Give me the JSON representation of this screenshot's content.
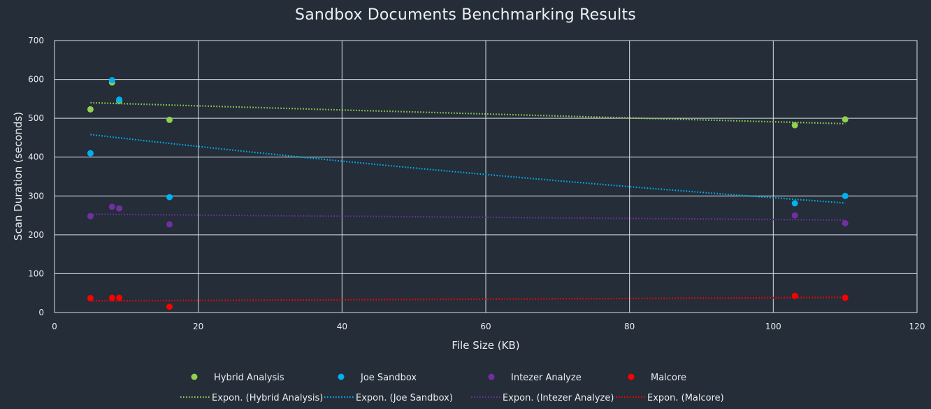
{
  "chart_data": {
    "type": "scatter",
    "title": "Sandbox Documents Benchmarking Results",
    "xlabel": "File Size (KB)",
    "ylabel": "Scan Duration (seconds)",
    "xlim": [
      0,
      120
    ],
    "ylim": [
      0,
      700
    ],
    "xticks": [
      0,
      20,
      40,
      60,
      80,
      100,
      120
    ],
    "yticks": [
      0,
      100,
      200,
      300,
      400,
      500,
      600,
      700
    ],
    "grid": true,
    "legend_position": "bottom",
    "series": [
      {
        "name": "Hybrid Analysis",
        "color": "#92d050",
        "points": [
          [
            5,
            523
          ],
          [
            8,
            592
          ],
          [
            9,
            545
          ],
          [
            16,
            496
          ],
          [
            103,
            482
          ],
          [
            110,
            497
          ]
        ]
      },
      {
        "name": "Joe Sandbox",
        "color": "#00b0f0",
        "points": [
          [
            5,
            410
          ],
          [
            8,
            598
          ],
          [
            9,
            548
          ],
          [
            16,
            297
          ],
          [
            103,
            281
          ],
          [
            110,
            300
          ]
        ]
      },
      {
        "name": "Intezer Analyze",
        "color": "#7030a0",
        "points": [
          [
            5,
            248
          ],
          [
            8,
            272
          ],
          [
            9,
            268
          ],
          [
            16,
            227
          ],
          [
            103,
            250
          ],
          [
            110,
            230
          ]
        ]
      },
      {
        "name": "Malcore",
        "color": "#ff0000",
        "points": [
          [
            5,
            37
          ],
          [
            8,
            38
          ],
          [
            9,
            38
          ],
          [
            16,
            15
          ],
          [
            103,
            43
          ],
          [
            110,
            38
          ]
        ]
      }
    ],
    "trendlines": [
      {
        "name": "Expon. (Hybrid Analysis)",
        "type": "exponential",
        "color": "#92d050",
        "x_range": [
          5,
          110
        ],
        "y_start": 540,
        "y_end": 486
      },
      {
        "name": "Expon. (Joe Sandbox)",
        "type": "exponential",
        "color": "#00b0f0",
        "x_range": [
          5,
          110
        ],
        "y_start": 458,
        "y_end": 282
      },
      {
        "name": "Expon. (Intezer Analyze)",
        "type": "exponential",
        "color": "#7030a0",
        "x_range": [
          5,
          110
        ],
        "y_start": 253,
        "y_end": 238
      },
      {
        "name": "Expon. (Malcore)",
        "type": "exponential",
        "color": "#ff0000",
        "x_range": [
          5,
          110
        ],
        "y_start": 30,
        "y_end": 39
      }
    ]
  }
}
